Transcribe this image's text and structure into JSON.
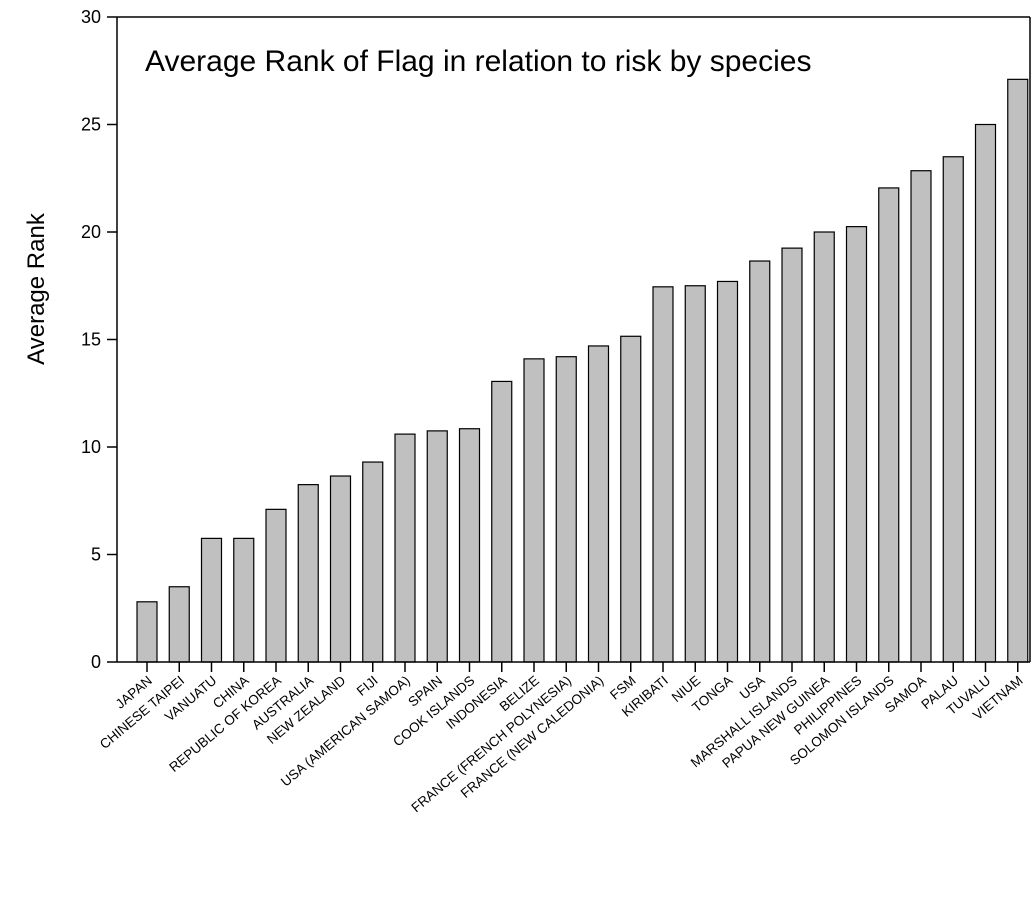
{
  "chart_data": {
    "type": "bar",
    "title": "Average Rank of Flag in relation to risk by species",
    "xlabel": "",
    "ylabel": "Average Rank",
    "ylim": [
      0,
      30
    ],
    "yticks": [
      0,
      5,
      10,
      15,
      20,
      25,
      30
    ],
    "grid": false,
    "bar_color": "#c0c0c0",
    "bar_edge_color": "#000000",
    "categories": [
      "JAPAN",
      "CHINESE TAIPEI",
      "VANUATU",
      "CHINA",
      "REPUBLIC OF KOREA",
      "AUSTRALIA",
      "NEW ZEALAND",
      "FIJI",
      "USA (AMERICAN SAMOA)",
      "SPAIN",
      "COOK ISLANDS",
      "INDONESIA",
      "BELIZE",
      "FRANCE (FRENCH POLYNESIA)",
      "FRANCE (NEW CALEDONIA)",
      "FSM",
      "KIRIBATI",
      "NIUE",
      "TONGA",
      "USA",
      "MARSHALL ISLANDS",
      "PAPUA NEW GUINEA",
      "PHILIPPINES",
      "SOLOMON ISLANDS",
      "SAMOA",
      "PALAU",
      "TUVALU",
      "VIETNAM"
    ],
    "values": [
      2.8,
      3.5,
      5.75,
      5.75,
      7.1,
      8.25,
      8.65,
      9.3,
      10.6,
      10.75,
      10.85,
      13.05,
      14.1,
      14.2,
      14.7,
      15.15,
      17.45,
      17.5,
      17.7,
      18.65,
      19.25,
      20.0,
      20.25,
      22.05,
      22.85,
      23.5,
      25.0,
      27.1
    ]
  }
}
